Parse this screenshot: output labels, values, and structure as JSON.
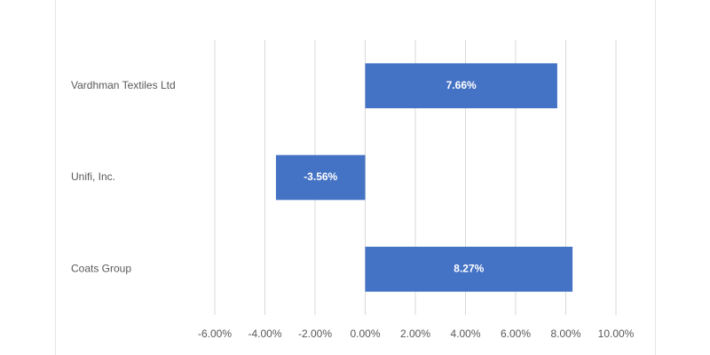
{
  "chart_data": {
    "type": "bar",
    "orientation": "horizontal",
    "categories": [
      "Vardhman Textiles Ltd",
      "Unifi, Inc.",
      "Coats Group"
    ],
    "values": [
      7.66,
      -3.56,
      8.27
    ],
    "value_labels": [
      "7.66%",
      "-3.56%",
      "8.27%"
    ],
    "color": "#4472c4",
    "xlim": [
      -6,
      10
    ],
    "xticks": [
      {
        "value": -6,
        "label": "-6.00%"
      },
      {
        "value": -4,
        "label": "-4.00%"
      },
      {
        "value": -2,
        "label": "-2.00%"
      },
      {
        "value": 0,
        "label": "0.00%"
      },
      {
        "value": 2,
        "label": "2.00%"
      },
      {
        "value": 4,
        "label": "4.00%"
      },
      {
        "value": 6,
        "label": "6.00%"
      },
      {
        "value": 8,
        "label": "8.00%"
      },
      {
        "value": 10,
        "label": "10.00%"
      }
    ],
    "grid": true
  }
}
